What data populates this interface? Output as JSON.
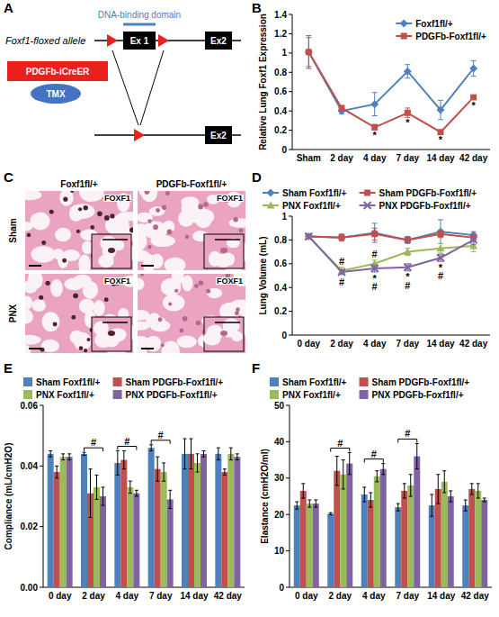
{
  "diagram": {
    "panel_label": "A",
    "allele_label": "Foxf1-floxed allele",
    "domain_label": "DNA-binding domain",
    "exon1": "Ex 1",
    "exon2": "Ex2",
    "cre_label": "PDGFb-iCreER",
    "tamoxifen": "TMX",
    "recombined_exon2": "Ex2"
  },
  "images": {
    "panel_label": "C",
    "columns": [
      "Foxf1fl/+",
      "PDGFb-Foxf1fl/+"
    ],
    "rows": [
      "Sham",
      "PNX"
    ],
    "stain": "FOXF1"
  },
  "chart_data": [
    {
      "panel_label": "B",
      "type": "line",
      "y_label": "Relative Lung Foxf1 Expression",
      "categories": [
        "Sham",
        "2 day",
        "4 day",
        "7 day",
        "14 day",
        "42 day"
      ],
      "ylim": [
        0,
        1.4
      ],
      "yticks": [
        0,
        0.2,
        0.4,
        0.6,
        0.8,
        1,
        1.2,
        1.4
      ],
      "grid": false,
      "legend": "top-right",
      "series": [
        {
          "name": "Foxf1fl/+",
          "color": "#4f81bd",
          "marker": "diamond",
          "values": [
            1.01,
            0.4,
            0.47,
            0.81,
            0.41,
            0.84
          ],
          "errors": [
            0.15,
            0.03,
            0.12,
            0.07,
            0.1,
            0.08
          ]
        },
        {
          "name": "PDGFb-Foxf1fl/+",
          "color": "#c0504d",
          "marker": "square",
          "values": [
            1.01,
            0.43,
            0.23,
            0.38,
            0.18,
            0.54
          ],
          "errors": [
            0.17,
            0.02,
            0.03,
            0.05,
            0.02,
            0.02
          ]
        }
      ],
      "annotations": [
        {
          "text": "*",
          "category": "4 day",
          "y": 0.15
        },
        {
          "text": "*",
          "category": "7 day",
          "y": 0.28
        },
        {
          "text": "*",
          "category": "14 day",
          "y": 0.1
        },
        {
          "text": "*",
          "category": "42 day",
          "y": 0.46
        }
      ]
    },
    {
      "panel_label": "D",
      "type": "line",
      "y_label": "Lung Volume (mL)",
      "categories": [
        "0 day",
        "2 day",
        "4 day",
        "7 day",
        "14 day",
        "42 day"
      ],
      "ylim": [
        0,
        1
      ],
      "yticks": [
        0,
        0.2,
        0.4,
        0.6,
        0.8,
        1
      ],
      "grid": false,
      "legend": "top",
      "series": [
        {
          "name": "Sham Foxf1fl/+",
          "color": "#4f81bd",
          "marker": "diamond",
          "values": [
            0.83,
            0.82,
            0.86,
            0.8,
            0.87,
            0.84
          ],
          "errors": [
            0.02,
            0.03,
            0.08,
            0.03,
            0.1,
            0.03
          ]
        },
        {
          "name": "Sham PDGFb-Foxf1fl/+",
          "color": "#c0504d",
          "marker": "square",
          "values": [
            0.83,
            0.82,
            0.85,
            0.8,
            0.85,
            0.82
          ],
          "errors": [
            0.02,
            0.02,
            0.05,
            0.02,
            0.03,
            0.03
          ]
        },
        {
          "name": "PNX Foxf1fl/+",
          "color": "#9bbb59",
          "marker": "triangle",
          "values": [
            0.83,
            0.54,
            0.6,
            0.7,
            0.73,
            0.75
          ],
          "errors": [
            0.02,
            0.03,
            0.03,
            0.03,
            0.04,
            0.05
          ]
        },
        {
          "name": "PNX PDGFb-Foxf1fl/+",
          "color": "#8064a2",
          "marker": "x",
          "values": [
            0.83,
            0.53,
            0.56,
            0.57,
            0.65,
            0.8
          ],
          "errors": [
            0.02,
            0.02,
            0.03,
            0.03,
            0.03,
            0.04
          ]
        }
      ],
      "annotations": [
        {
          "text": "#",
          "category": "2 day",
          "y": 0.62
        },
        {
          "text": "#",
          "category": "2 day",
          "y": 0.45
        },
        {
          "text": "#",
          "category": "4 day",
          "y": 0.68
        },
        {
          "text": "*",
          "category": "4 day",
          "y": 0.48
        },
        {
          "text": "#",
          "category": "4 day",
          "y": 0.41
        },
        {
          "text": "*",
          "category": "7 day",
          "y": 0.49
        },
        {
          "text": "#",
          "category": "7 day",
          "y": 0.42
        },
        {
          "text": "*",
          "category": "14 day",
          "y": 0.57
        },
        {
          "text": "#",
          "category": "14 day",
          "y": 0.5
        }
      ]
    },
    {
      "panel_label": "E",
      "type": "bar",
      "y_label": "Compliance (mL/cmH2O)",
      "categories": [
        "0 day",
        "2 day",
        "4 day",
        "7 day",
        "14 day",
        "42 day"
      ],
      "ylim": [
        0,
        0.06
      ],
      "yticks": [
        {
          "value": 0,
          "label": "0.00"
        },
        {
          "value": 0.02,
          "label": "0.02"
        },
        {
          "value": 0.04,
          "label": "0.04"
        },
        {
          "value": 0.06,
          "label": "0.06"
        }
      ],
      "grid": false,
      "legend": "top",
      "series": [
        {
          "name": "Sham Foxf1fl/+",
          "color": "#4f81bd",
          "values": [
            0.044,
            0.044,
            0.041,
            0.046,
            0.044,
            0.044
          ],
          "errors": [
            0.001,
            0.0005,
            0.004,
            0.001,
            0.005,
            0.002
          ]
        },
        {
          "name": "Sham PDGFb-Foxf1fl/+",
          "color": "#c0504d",
          "values": [
            0.038,
            0.031,
            0.042,
            0.039,
            0.044,
            0.038
          ],
          "errors": [
            0.002,
            0.008,
            0.003,
            0.004,
            0.005,
            0.001
          ]
        },
        {
          "name": "PNX Foxf1fl/+",
          "color": "#9bbb59",
          "values": [
            0.043,
            0.033,
            0.033,
            0.038,
            0.041,
            0.044
          ],
          "errors": [
            0.001,
            0.004,
            0.002,
            0.003,
            0.003,
            0.002
          ]
        },
        {
          "name": "PNX PDGFb-Foxf1fl/+",
          "color": "#8064a2",
          "values": [
            0.043,
            0.03,
            0.031,
            0.029,
            0.044,
            0.043
          ],
          "errors": [
            0.001,
            0.003,
            0.001,
            0.003,
            0.001,
            0.001
          ]
        }
      ],
      "brackets": [
        {
          "category": "2 day",
          "text": "#"
        },
        {
          "category": "4 day",
          "text": "#"
        },
        {
          "category": "7 day",
          "text": "#"
        }
      ]
    },
    {
      "panel_label": "F",
      "type": "bar",
      "y_label": "Elastance (cmH2O/ml)",
      "categories": [
        "0 day",
        "2 day",
        "4 day",
        "7 day",
        "14 day",
        "42 day"
      ],
      "ylim": [
        0,
        50
      ],
      "yticks": [
        0,
        10,
        20,
        30,
        40,
        50
      ],
      "grid": false,
      "legend": "top",
      "series": [
        {
          "name": "Sham Foxf1fl/+",
          "color": "#4f81bd",
          "values": [
            22.5,
            20.2,
            25.5,
            22,
            22.5,
            22.5
          ],
          "errors": [
            1,
            0.3,
            2,
            1,
            3,
            1.5
          ]
        },
        {
          "name": "Sham PDGFb-Foxf1fl/+",
          "color": "#c0504d",
          "values": [
            26.5,
            32,
            24,
            26.5,
            27,
            27
          ],
          "errors": [
            2,
            4,
            2,
            2,
            4,
            1.5
          ]
        },
        {
          "name": "PNX Foxf1fl/+",
          "color": "#9bbb59",
          "values": [
            23,
            31,
            30.5,
            28,
            29,
            26.5
          ],
          "errors": [
            1,
            4,
            1.5,
            3,
            3,
            2
          ]
        },
        {
          "name": "PNX PDGFb-Foxf1fl/+",
          "color": "#8064a2",
          "values": [
            23,
            34,
            32.5,
            36,
            25,
            24
          ],
          "errors": [
            1,
            3,
            1.5,
            3.5,
            1.5,
            0.5
          ]
        }
      ],
      "brackets": [
        {
          "category": "2 day",
          "text": "#"
        },
        {
          "category": "4 day",
          "text": "#"
        },
        {
          "category": "7 day",
          "text": "#"
        }
      ]
    }
  ]
}
